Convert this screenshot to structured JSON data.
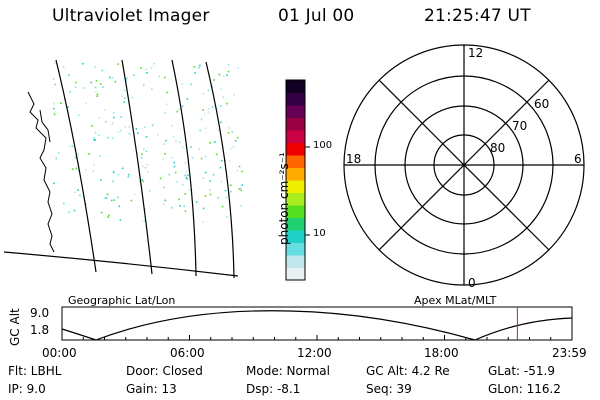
{
  "header": {
    "title": "Ultraviolet Imager",
    "date": "01 Jul 00",
    "time": "21:25:47 UT"
  },
  "colorbar": {
    "unit_label": "photon cm⁻²s⁻¹",
    "ticks": [
      "100",
      "10"
    ],
    "colors": [
      "#e8f0f2",
      "#bfe6ea",
      "#66dde0",
      "#20cfc6",
      "#20d070",
      "#55dd20",
      "#aaee20",
      "#eeee00",
      "#ffaa00",
      "#ff6600",
      "#ee0000",
      "#cc0044",
      "#990044",
      "#660055",
      "#330044",
      "#110022"
    ]
  },
  "polar_plot": {
    "hour_labels": {
      "top": "12",
      "left": "18",
      "right": "6",
      "bottom": "0"
    },
    "lat_labels": [
      "60",
      "70",
      "80"
    ]
  },
  "geographic_label": "Geographic Lat/Lon",
  "apex_label": "Apex MLat/MLT",
  "altitude_plot": {
    "ylabel": "GC Alt",
    "yticks": [
      "9.0",
      "1.8"
    ],
    "xticks": [
      "00:00",
      "06:00",
      "12:00",
      "18:00",
      "23:59"
    ],
    "current_time_marker_hour": 21.43
  },
  "info": {
    "flt": "Flt: LBHL",
    "ip": "IP:  9.0",
    "door": "Door: Closed",
    "gain": "Gain: 13",
    "mode": "Mode: Normal",
    "dsp": "Dsp:   -8.1",
    "gcalt": "GC Alt: 4.2 Re",
    "seq": "Seq: 39",
    "glat": "GLat: -51.9",
    "glon": "GLon: 116.2"
  }
}
